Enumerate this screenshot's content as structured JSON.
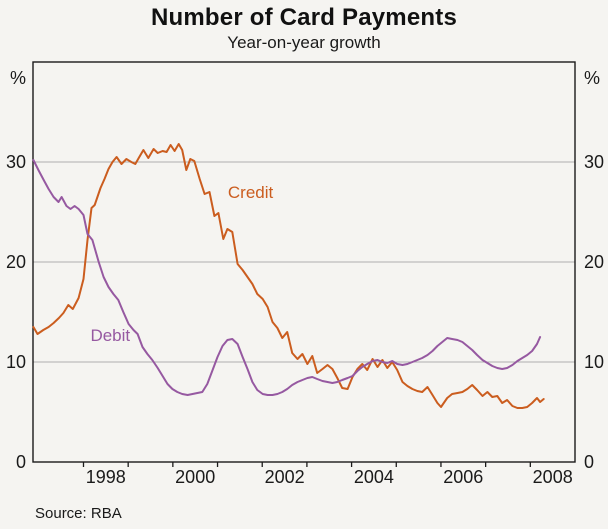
{
  "chart_data": {
    "type": "line",
    "title": "Number of Card Payments",
    "subtitle": "Year-on-year growth",
    "source": "Source: RBA",
    "y_axis_unit": "%",
    "x_range": [
      1996.87,
      2009.0
    ],
    "y_range": [
      0,
      40
    ],
    "y_ticks": [
      0,
      10,
      20,
      30
    ],
    "y_gridlines": [
      10,
      20,
      30
    ],
    "x_ticks": [
      1998,
      1999,
      2000,
      2001,
      2002,
      2003,
      2004,
      2005,
      2006,
      2007,
      2008
    ],
    "x_tick_labels": [
      1998,
      2000,
      2002,
      2004,
      2006,
      2008
    ],
    "grid": "horizontal",
    "legend": "inline-labels",
    "colors": {
      "axis": "#1a1a1a",
      "gridline": "#aeaeae",
      "text": "#1a1a1a",
      "background": "#f5f4f1"
    },
    "series": [
      {
        "name": "Credit",
        "color": "#cb5d1f",
        "label_pos": {
          "x": 2001.74,
          "y": 27.0
        },
        "points": [
          [
            1996.88,
            13.5
          ],
          [
            1996.97,
            12.8
          ],
          [
            1997.1,
            13.2
          ],
          [
            1997.22,
            13.5
          ],
          [
            1997.33,
            13.9
          ],
          [
            1997.45,
            14.4
          ],
          [
            1997.55,
            14.9
          ],
          [
            1997.66,
            15.7
          ],
          [
            1997.76,
            15.3
          ],
          [
            1997.89,
            16.4
          ],
          [
            1998.0,
            18.3
          ],
          [
            1998.09,
            22.2
          ],
          [
            1998.18,
            25.4
          ],
          [
            1998.25,
            25.7
          ],
          [
            1998.38,
            27.4
          ],
          [
            1998.47,
            28.3
          ],
          [
            1998.56,
            29.3
          ],
          [
            1998.65,
            30.0
          ],
          [
            1998.74,
            30.5
          ],
          [
            1998.85,
            29.8
          ],
          [
            1998.96,
            30.3
          ],
          [
            1999.07,
            30.0
          ],
          [
            1999.16,
            29.8
          ],
          [
            1999.25,
            30.5
          ],
          [
            1999.34,
            31.2
          ],
          [
            1999.45,
            30.4
          ],
          [
            1999.57,
            31.3
          ],
          [
            1999.66,
            30.9
          ],
          [
            1999.77,
            31.1
          ],
          [
            1999.86,
            31.0
          ],
          [
            1999.95,
            31.7
          ],
          [
            2000.04,
            31.1
          ],
          [
            2000.13,
            31.8
          ],
          [
            2000.21,
            31.2
          ],
          [
            2000.3,
            29.2
          ],
          [
            2000.39,
            30.3
          ],
          [
            2000.48,
            30.1
          ],
          [
            2000.6,
            28.3
          ],
          [
            2000.71,
            26.8
          ],
          [
            2000.82,
            27.0
          ],
          [
            2000.93,
            24.6
          ],
          [
            2001.02,
            24.9
          ],
          [
            2001.13,
            22.3
          ],
          [
            2001.22,
            23.3
          ],
          [
            2001.33,
            23.0
          ],
          [
            2001.45,
            19.8
          ],
          [
            2001.56,
            19.2
          ],
          [
            2001.67,
            18.5
          ],
          [
            2001.78,
            17.8
          ],
          [
            2001.89,
            16.8
          ],
          [
            2002.01,
            16.3
          ],
          [
            2002.12,
            15.5
          ],
          [
            2002.23,
            14.0
          ],
          [
            2002.34,
            13.4
          ],
          [
            2002.45,
            12.4
          ],
          [
            2002.56,
            13.0
          ],
          [
            2002.67,
            10.9
          ],
          [
            2002.79,
            10.3
          ],
          [
            2002.9,
            10.8
          ],
          [
            2003.01,
            9.8
          ],
          [
            2003.12,
            10.6
          ],
          [
            2003.23,
            8.9
          ],
          [
            2003.35,
            9.3
          ],
          [
            2003.46,
            9.7
          ],
          [
            2003.57,
            9.3
          ],
          [
            2003.68,
            8.4
          ],
          [
            2003.79,
            7.4
          ],
          [
            2003.91,
            7.3
          ],
          [
            2004.02,
            8.5
          ],
          [
            2004.13,
            9.3
          ],
          [
            2004.24,
            9.8
          ],
          [
            2004.35,
            9.2
          ],
          [
            2004.47,
            10.3
          ],
          [
            2004.58,
            9.5
          ],
          [
            2004.69,
            10.2
          ],
          [
            2004.8,
            9.4
          ],
          [
            2004.91,
            10.0
          ],
          [
            2005.02,
            9.2
          ],
          [
            2005.14,
            8.0
          ],
          [
            2005.25,
            7.6
          ],
          [
            2005.36,
            7.3
          ],
          [
            2005.47,
            7.1
          ],
          [
            2005.58,
            7.0
          ],
          [
            2005.7,
            7.5
          ],
          [
            2005.81,
            6.7
          ],
          [
            2005.92,
            5.9
          ],
          [
            2006.0,
            5.5
          ],
          [
            2006.14,
            6.4
          ],
          [
            2006.25,
            6.8
          ],
          [
            2006.37,
            6.9
          ],
          [
            2006.48,
            7.0
          ],
          [
            2006.59,
            7.3
          ],
          [
            2006.7,
            7.7
          ],
          [
            2006.81,
            7.2
          ],
          [
            2006.93,
            6.6
          ],
          [
            2007.04,
            7.0
          ],
          [
            2007.15,
            6.5
          ],
          [
            2007.26,
            6.6
          ],
          [
            2007.37,
            5.9
          ],
          [
            2007.48,
            6.2
          ],
          [
            2007.6,
            5.6
          ],
          [
            2007.71,
            5.4
          ],
          [
            2007.82,
            5.4
          ],
          [
            2007.93,
            5.5
          ],
          [
            2008.04,
            5.9
          ],
          [
            2008.15,
            6.4
          ],
          [
            2008.22,
            6.0
          ],
          [
            2008.3,
            6.3
          ]
        ]
      },
      {
        "name": "Debit",
        "color": "#9659a1",
        "label_pos": {
          "x": 1998.6,
          "y": 12.7
        },
        "points": [
          [
            1996.88,
            30.2
          ],
          [
            1996.99,
            29.2
          ],
          [
            1997.11,
            28.2
          ],
          [
            1997.22,
            27.3
          ],
          [
            1997.33,
            26.5
          ],
          [
            1997.44,
            26.0
          ],
          [
            1997.51,
            26.5
          ],
          [
            1997.62,
            25.6
          ],
          [
            1997.71,
            25.3
          ],
          [
            1997.8,
            25.6
          ],
          [
            1997.89,
            25.3
          ],
          [
            1998.0,
            24.7
          ],
          [
            1998.09,
            22.8
          ],
          [
            1998.2,
            22.2
          ],
          [
            1998.34,
            20.0
          ],
          [
            1998.45,
            18.5
          ],
          [
            1998.56,
            17.5
          ],
          [
            1998.67,
            16.8
          ],
          [
            1998.78,
            16.2
          ],
          [
            1998.89,
            15.0
          ],
          [
            1999.01,
            13.8
          ],
          [
            1999.12,
            13.2
          ],
          [
            1999.21,
            12.8
          ],
          [
            1999.32,
            11.5
          ],
          [
            1999.43,
            10.8
          ],
          [
            1999.54,
            10.2
          ],
          [
            1999.66,
            9.4
          ],
          [
            1999.77,
            8.6
          ],
          [
            1999.88,
            7.8
          ],
          [
            1999.99,
            7.3
          ],
          [
            2000.1,
            7.0
          ],
          [
            2000.21,
            6.8
          ],
          [
            2000.33,
            6.7
          ],
          [
            2000.44,
            6.8
          ],
          [
            2000.55,
            6.9
          ],
          [
            2000.66,
            7.0
          ],
          [
            2000.77,
            7.8
          ],
          [
            2000.89,
            9.2
          ],
          [
            2001.0,
            10.5
          ],
          [
            2001.11,
            11.6
          ],
          [
            2001.22,
            12.2
          ],
          [
            2001.33,
            12.3
          ],
          [
            2001.45,
            11.8
          ],
          [
            2001.56,
            10.5
          ],
          [
            2001.67,
            9.3
          ],
          [
            2001.78,
            8.0
          ],
          [
            2001.89,
            7.2
          ],
          [
            2002.01,
            6.8
          ],
          [
            2002.12,
            6.7
          ],
          [
            2002.23,
            6.7
          ],
          [
            2002.34,
            6.8
          ],
          [
            2002.45,
            7.0
          ],
          [
            2002.56,
            7.3
          ],
          [
            2002.67,
            7.7
          ],
          [
            2002.79,
            8.0
          ],
          [
            2002.9,
            8.2
          ],
          [
            2003.01,
            8.4
          ],
          [
            2003.12,
            8.5
          ],
          [
            2003.23,
            8.3
          ],
          [
            2003.35,
            8.1
          ],
          [
            2003.46,
            8.0
          ],
          [
            2003.57,
            7.9
          ],
          [
            2003.68,
            8.0
          ],
          [
            2003.79,
            8.2
          ],
          [
            2003.91,
            8.4
          ],
          [
            2004.02,
            8.6
          ],
          [
            2004.13,
            9.1
          ],
          [
            2004.24,
            9.5
          ],
          [
            2004.35,
            9.8
          ],
          [
            2004.47,
            10.1
          ],
          [
            2004.58,
            10.2
          ],
          [
            2004.69,
            10.0
          ],
          [
            2004.8,
            9.9
          ],
          [
            2004.91,
            10.1
          ],
          [
            2005.02,
            9.8
          ],
          [
            2005.14,
            9.7
          ],
          [
            2005.25,
            9.8
          ],
          [
            2005.36,
            10.0
          ],
          [
            2005.47,
            10.2
          ],
          [
            2005.58,
            10.4
          ],
          [
            2005.7,
            10.7
          ],
          [
            2005.81,
            11.1
          ],
          [
            2005.92,
            11.6
          ],
          [
            2006.03,
            12.0
          ],
          [
            2006.14,
            12.4
          ],
          [
            2006.25,
            12.3
          ],
          [
            2006.37,
            12.2
          ],
          [
            2006.48,
            12.0
          ],
          [
            2006.59,
            11.6
          ],
          [
            2006.7,
            11.2
          ],
          [
            2006.81,
            10.7
          ],
          [
            2006.93,
            10.2
          ],
          [
            2007.04,
            9.9
          ],
          [
            2007.15,
            9.6
          ],
          [
            2007.26,
            9.4
          ],
          [
            2007.37,
            9.3
          ],
          [
            2007.48,
            9.4
          ],
          [
            2007.6,
            9.7
          ],
          [
            2007.71,
            10.1
          ],
          [
            2007.82,
            10.4
          ],
          [
            2007.93,
            10.7
          ],
          [
            2008.04,
            11.1
          ],
          [
            2008.15,
            11.8
          ],
          [
            2008.22,
            12.5
          ]
        ]
      }
    ]
  }
}
